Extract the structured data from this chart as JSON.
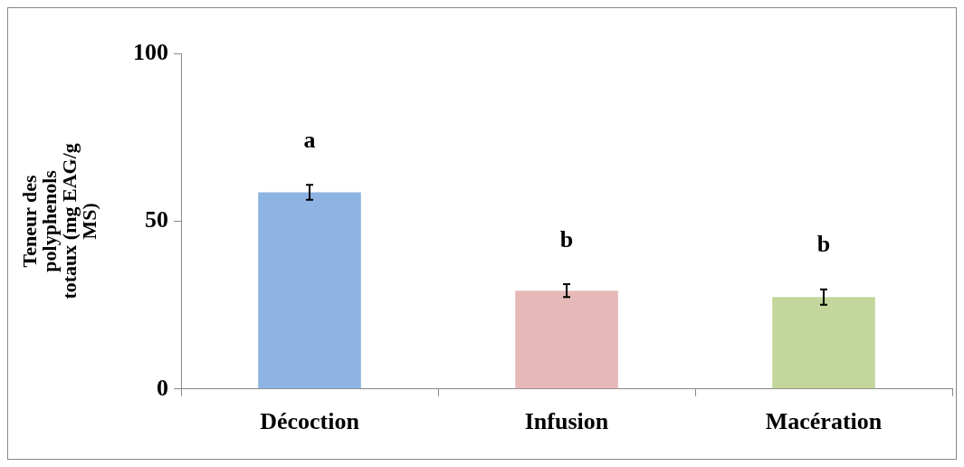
{
  "chart_data": {
    "type": "bar",
    "ylabel": "Teneur des polyphenols totaux (mg EAG/g MS)",
    "categories": [
      "Décoction",
      "Infusion",
      "Macération"
    ],
    "values": [
      58.6,
      29.3,
      27.4
    ],
    "colors": [
      "#8eb4e3",
      "#e6b9b8",
      "#c3d69b"
    ],
    "errors": [
      2.2,
      1.9,
      2.3
    ],
    "ylim": [
      0,
      100
    ],
    "yticks": [
      0,
      50,
      100
    ],
    "grid": false,
    "legend": false,
    "annotations": [
      "a",
      "b",
      "b"
    ]
  }
}
